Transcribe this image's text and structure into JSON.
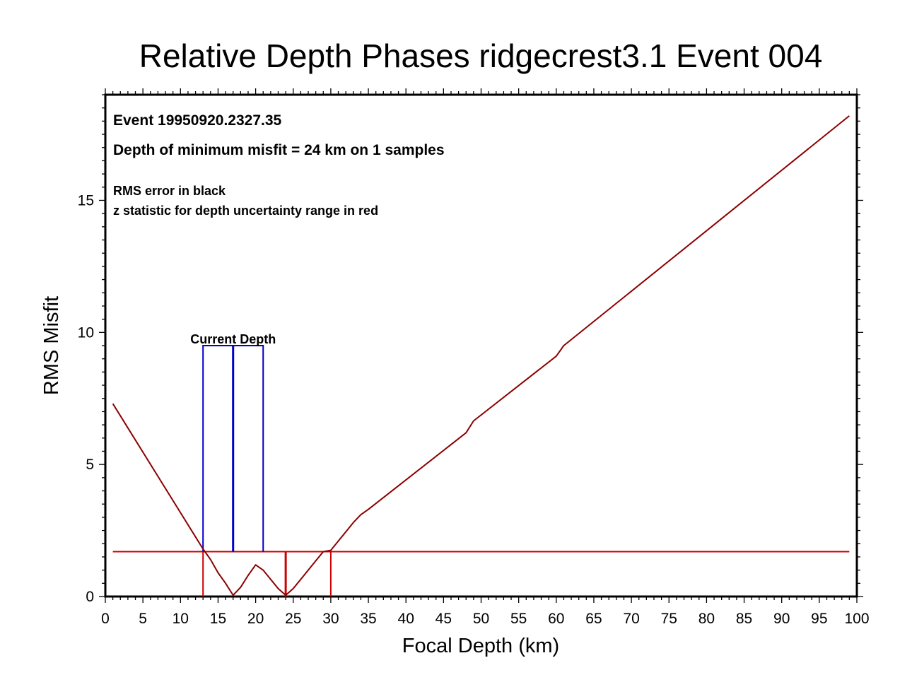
{
  "chart_data": {
    "type": "line",
    "title": "Relative Depth Phases ridgecrest3.1 Event 004",
    "xlabel": "Focal Depth (km)",
    "ylabel": "RMS Misfit",
    "xlim": [
      0,
      100
    ],
    "ylim": [
      0,
      19
    ],
    "x_ticks": [
      "0",
      "5",
      "10",
      "15",
      "20",
      "25",
      "30",
      "35",
      "40",
      "45",
      "50",
      "55",
      "60",
      "65",
      "70",
      "75",
      "80",
      "85",
      "90",
      "95",
      "100"
    ],
    "y_ticks": [
      "0",
      "5",
      "10",
      "15"
    ],
    "x_tick_values": [
      0,
      5,
      10,
      15,
      20,
      25,
      30,
      35,
      40,
      45,
      50,
      55,
      60,
      65,
      70,
      75,
      80,
      85,
      90,
      95,
      100
    ],
    "y_tick_values": [
      0,
      5,
      10,
      15
    ],
    "grid": false,
    "annotations": {
      "event": "Event 19950920.2327.35",
      "min_misfit": "Depth of minimum misfit =  24 km on  1 samples",
      "rms_note": "RMS error in black",
      "z_note": "z statistic for depth uncertainty range in red",
      "current_depth_label": "Current Depth"
    },
    "series": [
      {
        "color": "#8b0000",
        "x": [
          1,
          13,
          14,
          15,
          16,
          17,
          18,
          19,
          20,
          21,
          22,
          23,
          24,
          25,
          26,
          27,
          28,
          29,
          30,
          31,
          32,
          33,
          34,
          35,
          48,
          49,
          60,
          61,
          99
        ],
        "y": [
          7.3,
          1.8,
          1.4,
          0.9,
          0.5,
          0.05,
          0.35,
          0.8,
          1.2,
          1.0,
          0.65,
          0.3,
          0.05,
          0.3,
          0.65,
          1.0,
          1.35,
          1.7,
          1.75,
          2.1,
          2.45,
          2.8,
          3.1,
          3.3,
          6.2,
          6.65,
          9.1,
          9.5,
          18.2
        ]
      }
    ],
    "threshold": {
      "color": "#cc0000",
      "y": 1.7,
      "x_from": 1,
      "x_to": 99
    },
    "uncertainty_lines": {
      "color": "#cc0000",
      "x": [
        13,
        24,
        30
      ],
      "min_depth_x": 24
    },
    "current_depth": {
      "color": "#0000cc",
      "x_low": 13,
      "x_center": 17,
      "x_high": 21,
      "y_top": 9.5
    }
  }
}
